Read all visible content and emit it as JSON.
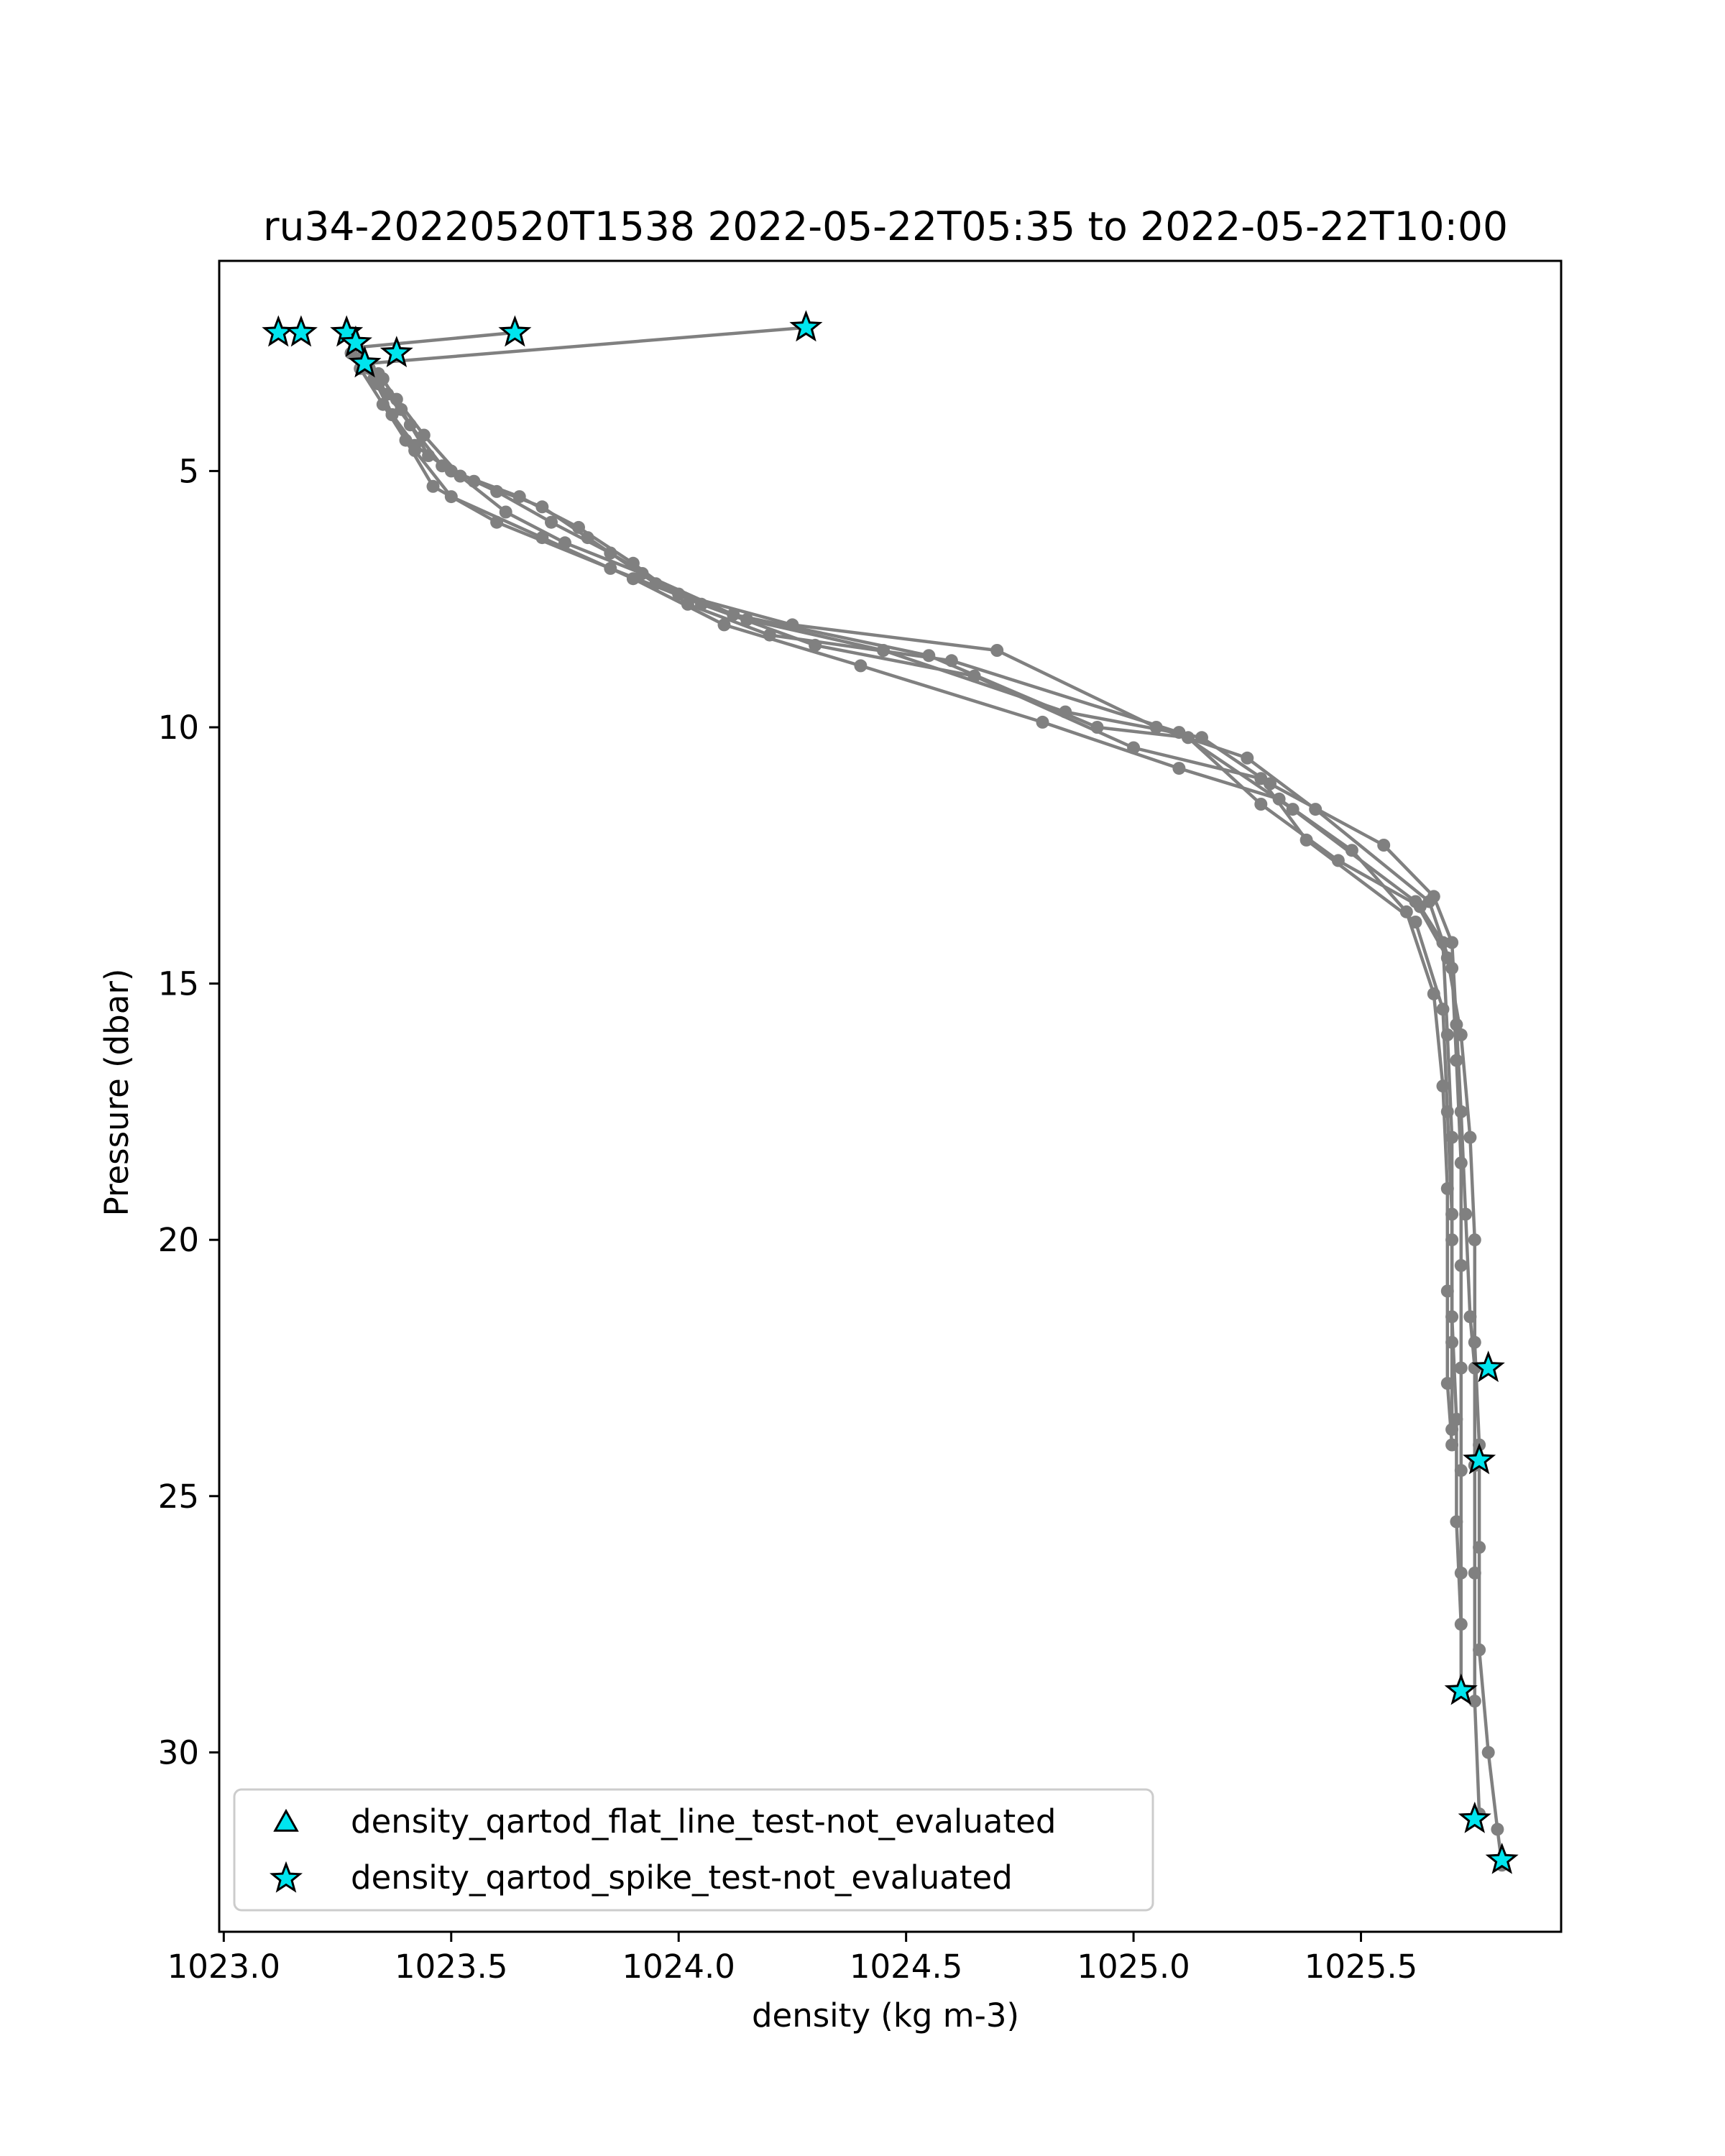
{
  "chart_data": {
    "type": "line",
    "title": "ru34-20220520T1538 2022-05-22T05:35 to 2022-05-22T10:00",
    "xlabel": "density (kg m-3)",
    "ylabel": "Pressure (dbar)",
    "xlim": [
      1022.99,
      1025.94
    ],
    "ylim": [
      33.5,
      0.9
    ],
    "y_inverted": true,
    "xticks": [
      "1023.0",
      "1023.5",
      "1024.0",
      "1024.5",
      "1025.0",
      "1025.5"
    ],
    "yticks": [
      "5",
      "10",
      "15",
      "20",
      "25",
      "30"
    ],
    "grid": false,
    "line_color": "#808080",
    "flag_color": "#00e5ee",
    "legend": {
      "location": "lower left",
      "entries": [
        {
          "label": "density_qartod_flat_line_test-not_evaluated",
          "marker": "triangle"
        },
        {
          "label": "density_qartod_spike_test-not_evaluated",
          "marker": "star"
        }
      ]
    },
    "series": [
      {
        "points": [
          [
            1023.3,
            2.8
          ],
          [
            1023.34,
            3.3
          ],
          [
            1023.37,
            3.9
          ],
          [
            1023.42,
            4.5
          ],
          [
            1023.5,
            5.0
          ],
          [
            1023.65,
            5.5
          ],
          [
            1023.78,
            6.1
          ],
          [
            1023.9,
            6.8
          ],
          [
            1024.02,
            7.6
          ],
          [
            1024.2,
            8.2
          ],
          [
            1024.6,
            8.7
          ],
          [
            1025.1,
            10.1
          ],
          [
            1025.35,
            11.6
          ],
          [
            1025.62,
            13.4
          ],
          [
            1025.69,
            14.5
          ],
          [
            1025.72,
            16.0
          ],
          [
            1025.74,
            18.0
          ],
          [
            1025.75,
            20.0
          ],
          [
            1025.75,
            22.0
          ],
          [
            1025.76,
            24.0
          ],
          [
            1025.76,
            26.0
          ],
          [
            1025.76,
            28.0
          ],
          [
            1025.78,
            30.0
          ],
          [
            1025.8,
            31.5
          ],
          [
            1025.81,
            32.2
          ]
        ]
      },
      {
        "points": [
          [
            1023.28,
            2.7
          ],
          [
            1023.35,
            3.2
          ],
          [
            1023.39,
            3.8
          ],
          [
            1023.45,
            4.7
          ],
          [
            1023.55,
            5.2
          ],
          [
            1023.7,
            5.7
          ],
          [
            1023.8,
            6.3
          ],
          [
            1023.95,
            7.2
          ],
          [
            1024.15,
            7.9
          ],
          [
            1024.45,
            8.5
          ],
          [
            1024.85,
            9.7
          ],
          [
            1025.15,
            10.2
          ],
          [
            1025.3,
            11.1
          ],
          [
            1025.55,
            12.3
          ],
          [
            1025.66,
            13.3
          ],
          [
            1025.7,
            14.2
          ],
          [
            1025.71,
            15.8
          ],
          [
            1025.72,
            17.5
          ],
          [
            1025.73,
            19.5
          ],
          [
            1025.74,
            21.5
          ],
          [
            1025.75,
            22.5
          ],
          [
            1025.75,
            24.4
          ],
          [
            1025.75,
            26.5
          ],
          [
            1025.75,
            29.0
          ],
          [
            1025.76,
            31.2
          ]
        ]
      },
      {
        "points": [
          [
            1023.32,
            3.0
          ],
          [
            1023.36,
            3.5
          ],
          [
            1023.41,
            4.1
          ],
          [
            1023.48,
            4.9
          ],
          [
            1023.6,
            5.4
          ],
          [
            1023.72,
            6.0
          ],
          [
            1023.85,
            6.6
          ],
          [
            1024.0,
            7.4
          ],
          [
            1024.25,
            8.0
          ],
          [
            1024.7,
            8.5
          ],
          [
            1025.05,
            10.0
          ],
          [
            1025.25,
            10.6
          ],
          [
            1025.4,
            11.6
          ],
          [
            1025.65,
            13.4
          ],
          [
            1025.7,
            14.7
          ],
          [
            1025.71,
            16.5
          ],
          [
            1025.72,
            18.5
          ],
          [
            1025.72,
            20.5
          ],
          [
            1025.72,
            22.5
          ],
          [
            1025.72,
            24.5
          ],
          [
            1025.72,
            26.5
          ],
          [
            1025.72,
            28.8
          ]
        ]
      },
      {
        "points": [
          [
            1023.34,
            3.1
          ],
          [
            1023.38,
            3.6
          ],
          [
            1023.44,
            4.3
          ],
          [
            1023.52,
            5.1
          ],
          [
            1023.62,
            5.8
          ],
          [
            1023.75,
            6.4
          ],
          [
            1023.92,
            7.0
          ],
          [
            1024.12,
            7.8
          ],
          [
            1024.55,
            8.6
          ],
          [
            1024.92,
            10.0
          ],
          [
            1025.12,
            10.2
          ],
          [
            1025.28,
            11.5
          ],
          [
            1025.45,
            12.6
          ],
          [
            1025.63,
            13.5
          ],
          [
            1025.68,
            14.2
          ],
          [
            1025.69,
            16.0
          ],
          [
            1025.7,
            18.0
          ],
          [
            1025.7,
            20.0
          ],
          [
            1025.7,
            22.0
          ],
          [
            1025.7,
            23.7
          ]
        ]
      },
      {
        "points": [
          [
            1023.3,
            3.0
          ],
          [
            1023.35,
            3.7
          ],
          [
            1023.4,
            4.4
          ],
          [
            1023.46,
            5.3
          ],
          [
            1023.6,
            6.0
          ],
          [
            1023.85,
            6.9
          ],
          [
            1024.05,
            7.6
          ],
          [
            1024.3,
            8.4
          ],
          [
            1024.65,
            9.0
          ],
          [
            1025.0,
            10.4
          ],
          [
            1025.28,
            11.0
          ],
          [
            1025.38,
            12.2
          ],
          [
            1025.62,
            13.8
          ],
          [
            1025.68,
            15.5
          ],
          [
            1025.69,
            17.5
          ],
          [
            1025.7,
            19.5
          ],
          [
            1025.7,
            21.5
          ],
          [
            1025.71,
            23.5
          ],
          [
            1025.71,
            25.5
          ],
          [
            1025.72,
            27.5
          ]
        ]
      },
      {
        "points": [
          [
            1023.33,
            3.2
          ],
          [
            1023.37,
            3.9
          ],
          [
            1023.42,
            4.6
          ],
          [
            1023.5,
            5.5
          ],
          [
            1023.7,
            6.3
          ],
          [
            1023.9,
            7.1
          ],
          [
            1024.1,
            8.0
          ],
          [
            1024.4,
            8.8
          ],
          [
            1024.8,
            9.9
          ],
          [
            1025.1,
            10.8
          ],
          [
            1025.32,
            11.4
          ],
          [
            1025.48,
            12.4
          ],
          [
            1025.6,
            13.6
          ],
          [
            1025.66,
            15.2
          ],
          [
            1025.68,
            17.0
          ],
          [
            1025.69,
            19.0
          ],
          [
            1025.69,
            21.0
          ],
          [
            1025.69,
            22.8
          ],
          [
            1025.7,
            24.0
          ]
        ]
      }
    ],
    "spike_segments": [
      {
        "points": [
          [
            1023.28,
            2.6
          ],
          [
            1023.64,
            2.3
          ]
        ]
      },
      {
        "points": [
          [
            1023.32,
            2.9
          ],
          [
            1024.28,
            2.2
          ]
        ]
      }
    ],
    "flagged_points": {
      "flat_line_test": [],
      "spike_test": [
        [
          1023.12,
          2.3
        ],
        [
          1023.17,
          2.3
        ],
        [
          1023.27,
          2.3
        ],
        [
          1023.29,
          2.5
        ],
        [
          1023.31,
          2.9
        ],
        [
          1023.38,
          2.7
        ],
        [
          1023.64,
          2.3
        ],
        [
          1024.28,
          2.2
        ],
        [
          1025.78,
          22.5
        ],
        [
          1025.76,
          24.3
        ],
        [
          1025.72,
          28.8
        ],
        [
          1025.75,
          31.3
        ],
        [
          1025.81,
          32.1
        ]
      ]
    }
  }
}
